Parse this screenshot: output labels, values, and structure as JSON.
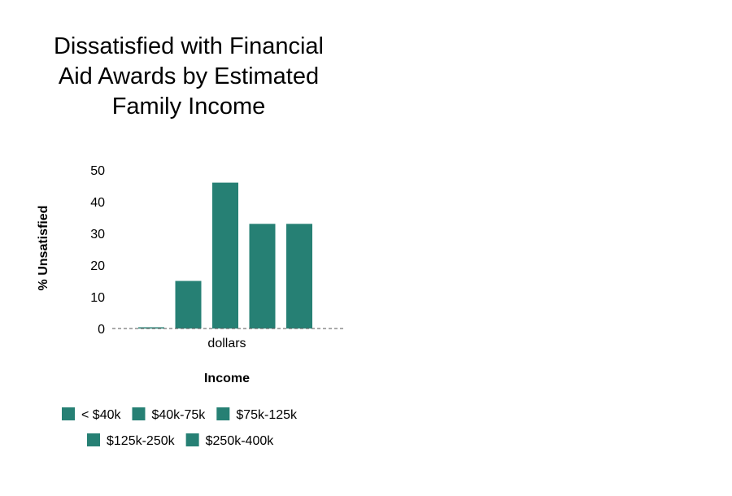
{
  "chart_data": {
    "type": "bar",
    "title": "Dissatisfied with Financial Aid Awards by Estimated Family Income",
    "title_lines": [
      "Dissatisfied with Financial",
      "Aid Awards by Estimated",
      "Family Income"
    ],
    "xlabel": "Income",
    "ylabel": "% Unsatisfied",
    "categories": [
      "dollars"
    ],
    "series": [
      {
        "name": "< $40k",
        "values": [
          0.3
        ]
      },
      {
        "name": "$40k-75k",
        "values": [
          15
        ]
      },
      {
        "name": "$75k-125k",
        "values": [
          46
        ]
      },
      {
        "name": "$125k-250k",
        "values": [
          33
        ]
      },
      {
        "name": "$250k-400k",
        "values": [
          33
        ]
      }
    ],
    "ylim": [
      0,
      50
    ],
    "yticks": [
      0,
      10,
      20,
      30,
      40,
      50
    ],
    "grid": false,
    "legend_position": "bottom",
    "bar_color": "#268074",
    "zero_line": "dashed"
  }
}
